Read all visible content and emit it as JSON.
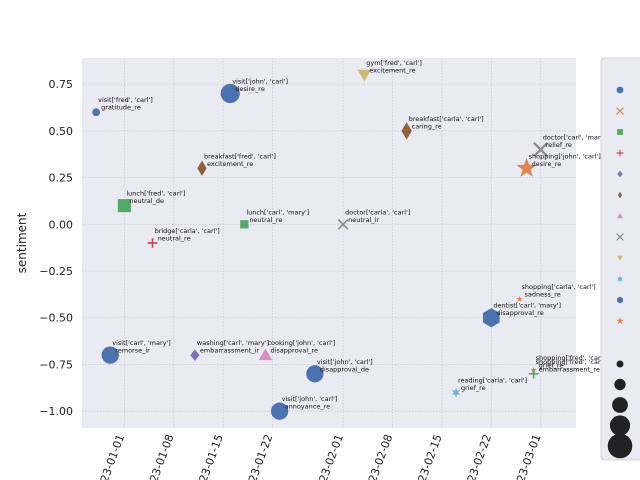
{
  "chart_data": {
    "type": "scatter",
    "title": "",
    "xlabel": "",
    "ylabel": "sentiment",
    "ylim": [
      -1.09,
      0.89
    ],
    "xlim": [
      "2022-12-26",
      "2023-03-06"
    ],
    "x_ticks": [
      "2023-01-01",
      "2023-01-08",
      "2023-01-15",
      "2023-01-22",
      "2023-02-01",
      "2023-02-08",
      "2023-02-15",
      "2023-02-22",
      "2023-03-01"
    ],
    "x_tick_labels": [
      "2023-01-01",
      "2023-01-08",
      "2023-01-15",
      "2023-01-22",
      "2023-02-01",
      "2023-02-08",
      "2023-02-15",
      "2023-02-22",
      "2023-03-01"
    ],
    "y_ticks": [
      0.75,
      0.5,
      0.25,
      0.0,
      -0.25,
      -0.5,
      -0.75,
      -1.0
    ],
    "y_tick_labels": [
      "0.75",
      "0.50",
      "0.25",
      "0.00",
      "−0.25",
      "−0.50",
      "−0.75",
      "−1.00"
    ],
    "grid": true,
    "background": "#eaeaf2",
    "legend_position": "right (clipped)",
    "points": [
      {
        "date": "2022-12-28",
        "y": 0.6,
        "label": "visit['fred', 'carl']\ngratitude_re",
        "marker": "circle",
        "color": "#4c72b0",
        "size": 2
      },
      {
        "date": "2023-01-16",
        "y": 0.7,
        "label": "visit['john', 'carl']\ndesire_re",
        "marker": "circle",
        "color": "#4c72b0",
        "size": 8
      },
      {
        "date": "2023-02-04",
        "y": 0.8,
        "label": "gym['fred', 'carl']\nexcitement_re",
        "marker": "triangle_down",
        "color": "#ccb974",
        "size": 6
      },
      {
        "date": "2023-02-10",
        "y": 0.5,
        "label": "breakfast['carla', 'carl']\ncaring_re",
        "marker": "thin_diamond",
        "color": "#8c613c",
        "size": 7
      },
      {
        "date": "2023-01-12",
        "y": 0.3,
        "label": "breakfast['fred', 'carl']\nexcitement_re",
        "marker": "thin_diamond",
        "color": "#8c613c",
        "size": 6
      },
      {
        "date": "2023-03-01",
        "y": 0.4,
        "label": "doctor['carl', 'mary']\nrelief_re",
        "marker": "x",
        "color": "#8c8c8c",
        "size": 5
      },
      {
        "date": "2023-02-27",
        "y": 0.3,
        "label": "shopping['john', 'carl']\ndesire_re",
        "marker": "star",
        "color": "#dd8452",
        "size": 8
      },
      {
        "date": "2023-01-01",
        "y": 0.1,
        "label": "lunch['fred', 'carl']\nneutral_de",
        "marker": "square",
        "color": "#55a868",
        "size": 6
      },
      {
        "date": "2023-01-18",
        "y": 0.0,
        "label": "lunch['carl', 'mary']\nneutral_re",
        "marker": "square",
        "color": "#55a868",
        "size": 3
      },
      {
        "date": "2023-02-01",
        "y": 0.0,
        "label": "doctor['carla', 'carl']\nneutral_ir",
        "marker": "x",
        "color": "#8c8c8c",
        "size": 3
      },
      {
        "date": "2023-01-05",
        "y": -0.1,
        "label": "bridge['carla', 'carl']\nneutral_re",
        "marker": "plus",
        "color": "#c44e52",
        "size": 3
      },
      {
        "date": "2023-02-26",
        "y": -0.4,
        "label": "shopping['carla', 'carl']\nsadness_re",
        "marker": "star",
        "color": "#dd8452",
        "size": 1
      },
      {
        "date": "2023-02-22",
        "y": -0.5,
        "label": "dentist['carl', 'mary']\ndisapproval_re",
        "marker": "hexagon",
        "color": "#4c72b0",
        "size": 8
      },
      {
        "date": "2022-12-30",
        "y": -0.7,
        "label": "visit['carl', 'mary']\nremorse_ir",
        "marker": "circle",
        "color": "#4c72b0",
        "size": 7
      },
      {
        "date": "2023-01-11",
        "y": -0.7,
        "label": "washing['carl', 'mary']\nembarrassment_ir",
        "marker": "diamond",
        "color": "#8172b3",
        "size": 4
      },
      {
        "date": "2023-01-21",
        "y": -0.7,
        "label": "cooking['john', 'carl']\ndisapproval_re",
        "marker": "triangle_up",
        "color": "#da8bc3",
        "size": 6
      },
      {
        "date": "2023-01-28",
        "y": -0.8,
        "label": "visit['john', 'carl']\ndisapproval_de",
        "marker": "circle",
        "color": "#4c72b0",
        "size": 7
      },
      {
        "date": "2023-02-28",
        "y": -0.78,
        "label": "shopping['fred', 'carl']\ngrief_re",
        "marker": "star",
        "color": "#dd8452",
        "size": 1
      },
      {
        "date": "2023-02-28",
        "y": -0.8,
        "label": "shopping['fred', 'carl']\nembarrassment_re",
        "marker": "plus",
        "color": "#55a868",
        "size": 3
      },
      {
        "date": "2023-02-17",
        "y": -0.9,
        "label": "reading['carla', 'carl']\ngrief_re",
        "marker": "star6",
        "color": "#64b5cd",
        "size": 3
      },
      {
        "date": "2023-01-23",
        "y": -1.0,
        "label": "visit['john', 'carl']\nannoyance_re",
        "marker": "circle",
        "color": "#4c72b0",
        "size": 7
      }
    ],
    "legend_markers": [
      {
        "marker": "circle",
        "color": "#4c72b0"
      },
      {
        "marker": "x",
        "color": "#dd8452"
      },
      {
        "marker": "square",
        "color": "#55a868"
      },
      {
        "marker": "plus",
        "color": "#c44e52"
      },
      {
        "marker": "diamond",
        "color": "#8172b3"
      },
      {
        "marker": "thin_diamond",
        "color": "#8c613c"
      },
      {
        "marker": "triangle_up",
        "color": "#da8bc3"
      },
      {
        "marker": "x",
        "color": "#8c8c8c"
      },
      {
        "marker": "triangle_down",
        "color": "#ccb974"
      },
      {
        "marker": "star6",
        "color": "#64b5cd"
      },
      {
        "marker": "hexagon",
        "color": "#4c72b0"
      },
      {
        "marker": "star",
        "color": "#dd8452"
      }
    ],
    "legend_sizes": [
      1,
      2,
      3,
      4,
      5
    ]
  }
}
